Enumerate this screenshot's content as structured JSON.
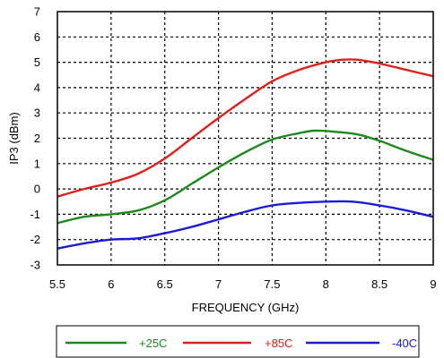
{
  "chart_data": {
    "type": "line",
    "title": "",
    "xlabel": "FREQUENCY (GHz)",
    "ylabel": "IP3 (dBm)",
    "xlim": [
      5.5,
      9
    ],
    "ylim": [
      -3,
      7
    ],
    "x_ticks": [
      "5.5",
      "6",
      "6.5",
      "7",
      "7.5",
      "8",
      "8.5",
      "9"
    ],
    "y_ticks": [
      "-3",
      "-2",
      "-1",
      "0",
      "1",
      "2",
      "3",
      "4",
      "5",
      "6",
      "7"
    ],
    "grid": true,
    "legend_position": "bottom",
    "series": [
      {
        "name": "+25C",
        "color": "#1a8a1a",
        "x": [
          5.5,
          5.75,
          6.0,
          6.25,
          6.5,
          6.75,
          7.0,
          7.25,
          7.5,
          7.75,
          7.9,
          8.1,
          8.3,
          8.5,
          8.75,
          9.0
        ],
        "y": [
          -1.35,
          -1.1,
          -1.0,
          -0.85,
          -0.45,
          0.2,
          0.85,
          1.45,
          1.95,
          2.2,
          2.3,
          2.25,
          2.15,
          1.9,
          1.5,
          1.15
        ]
      },
      {
        "name": "+85C",
        "color": "#e0201a",
        "x": [
          5.5,
          5.75,
          6.0,
          6.25,
          6.5,
          6.75,
          7.0,
          7.25,
          7.5,
          7.75,
          8.0,
          8.15,
          8.3,
          8.5,
          8.75,
          9.0
        ],
        "y": [
          -0.3,
          0.0,
          0.25,
          0.6,
          1.2,
          2.0,
          2.8,
          3.55,
          4.25,
          4.7,
          5.0,
          5.1,
          5.1,
          4.95,
          4.7,
          4.45
        ]
      },
      {
        "name": "-40C",
        "color": "#1a1ad9",
        "x": [
          5.5,
          5.75,
          6.0,
          6.25,
          6.5,
          6.75,
          7.0,
          7.25,
          7.5,
          7.75,
          8.0,
          8.25,
          8.5,
          8.75,
          9.0
        ],
        "y": [
          -2.35,
          -2.15,
          -2.0,
          -1.95,
          -1.75,
          -1.5,
          -1.2,
          -0.9,
          -0.65,
          -0.55,
          -0.5,
          -0.5,
          -0.65,
          -0.85,
          -1.1
        ]
      }
    ]
  }
}
